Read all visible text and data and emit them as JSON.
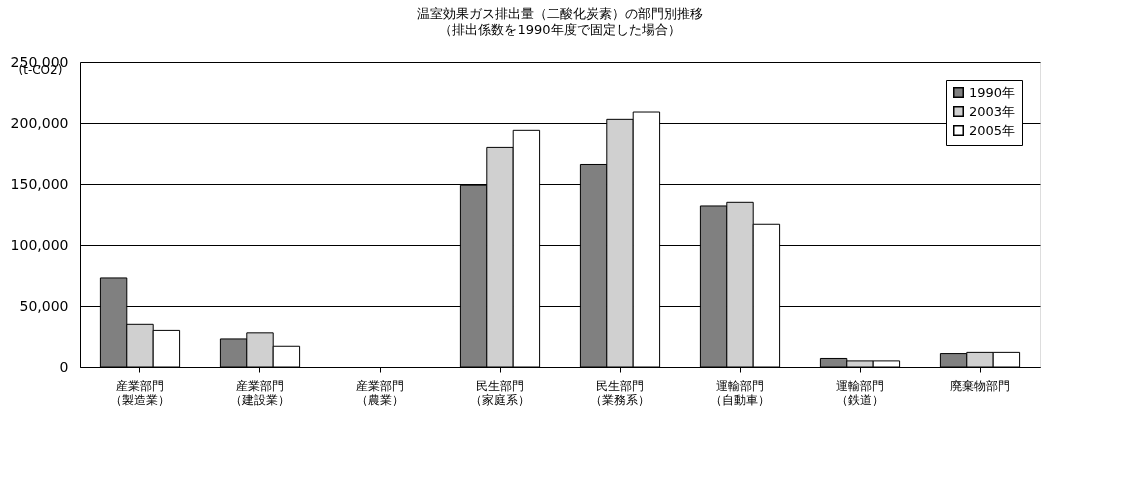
{
  "chart_data": {
    "type": "bar",
    "title": "温室効果ガス排出量（二酸化炭素）の部門別推移",
    "subtitle": "（排出係数を1990年度で固定した場合）",
    "ylabel": "(t-CO2)",
    "categories": [
      "産業部門（製造業）",
      "産業部門（建設業）",
      "産業部門（農業）",
      "民生部門（家庭系）",
      "民生部門（業務系）",
      "運輸部門（自動車）",
      "運輸部門（鉄道）",
      "廃棄物部門"
    ],
    "series": [
      {
        "name": "1990年",
        "color": "#808080",
        "values": [
          73000,
          23000,
          null,
          149000,
          166000,
          132000,
          7000,
          11000
        ]
      },
      {
        "name": "2003年",
        "color": "#d0d0d0",
        "values": [
          35000,
          28000,
          null,
          180000,
          203000,
          135000,
          5000,
          12000
        ]
      },
      {
        "name": "2005年",
        "color": "#ffffff",
        "values": [
          30000,
          17000,
          null,
          194000,
          209000,
          117000,
          5000,
          12000
        ]
      }
    ],
    "ylim": [
      0,
      250000
    ],
    "yticks": [
      0,
      {
        "value": 50000,
        "label": "50,000"
      },
      {
        "value": 100000,
        "label": "100,000"
      },
      {
        "value": 150000,
        "label": "150,000"
      },
      {
        "value": 200000,
        "label": "200,000"
      },
      {
        "value": 250000,
        "label": "250,000"
      }
    ],
    "grid": "y",
    "legend": "top right"
  }
}
